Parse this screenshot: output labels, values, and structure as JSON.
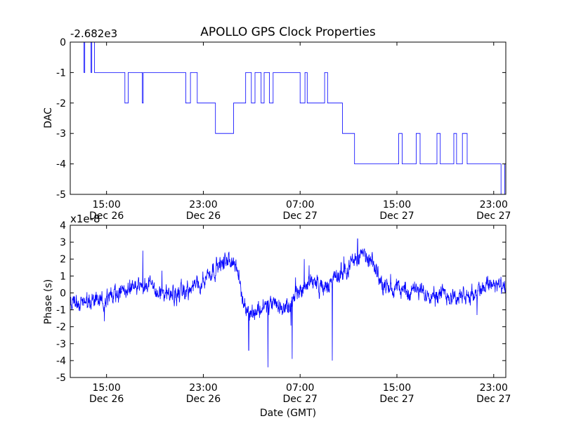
{
  "title": "APOLLO GPS Clock Properties",
  "xlabel": "Date (GMT)",
  "series_color": "#0000ff",
  "chart_data": [
    {
      "type": "line",
      "ylabel": "DAC",
      "offset_label": "-2.682e3",
      "y_ticks": [
        0,
        -1,
        -2,
        -3,
        -4,
        -5
      ],
      "ylim": [
        -5,
        0
      ],
      "xlim": [
        "2010-12-26 12:00",
        "2010-12-28 00:00"
      ],
      "x_ticks": [
        {
          "time": "2010-12-26 15:00",
          "label_time": "15:00",
          "label_date": "Dec 26"
        },
        {
          "time": "2010-12-26 23:00",
          "label_time": "23:00",
          "label_date": "Dec 26"
        },
        {
          "time": "2010-12-27 07:00",
          "label_time": "07:00",
          "label_date": "Dec 27"
        },
        {
          "time": "2010-12-27 15:00",
          "label_time": "15:00",
          "label_date": "Dec 27"
        },
        {
          "time": "2010-12-27 23:00",
          "label_time": "23:00",
          "label_date": "Dec 27"
        }
      ],
      "levels": [
        {
          "from": "2010-12-26 12:00",
          "to": "2010-12-26 13:12",
          "level": 0,
          "toggle": -1
        },
        {
          "from": "2010-12-26 13:12",
          "to": "2010-12-26 14:00",
          "level": 0,
          "toggle": -1
        },
        {
          "from": "2010-12-26 14:00",
          "to": "2010-12-26 15:48",
          "level": -1
        },
        {
          "from": "2010-12-26 15:48",
          "to": "2010-12-26 18:30",
          "level": -1,
          "toggle": -2
        },
        {
          "from": "2010-12-26 18:30",
          "to": "2010-12-26 21:00",
          "level": -1
        },
        {
          "from": "2010-12-26 21:00",
          "to": "2010-12-26 22:30",
          "level": -1,
          "toggle": -2
        },
        {
          "from": "2010-12-26 22:30",
          "to": "2010-12-27 00:00",
          "level": -2
        },
        {
          "from": "2010-12-27 00:00",
          "to": "2010-12-27 01:30",
          "level": -3
        },
        {
          "from": "2010-12-27 01:30",
          "to": "2010-12-27 02:30",
          "level": -2
        },
        {
          "from": "2010-12-27 02:30",
          "to": "2010-12-27 05:30",
          "level": -1,
          "toggle": -2
        },
        {
          "from": "2010-12-27 05:30",
          "to": "2010-12-27 07:00",
          "level": -1
        },
        {
          "from": "2010-12-27 07:00",
          "to": "2010-12-27 09:30",
          "level": -2,
          "toggle": -1
        },
        {
          "from": "2010-12-27 09:30",
          "to": "2010-12-27 10:30",
          "level": -2
        },
        {
          "from": "2010-12-27 10:30",
          "to": "2010-12-27 11:30",
          "level": -3
        },
        {
          "from": "2010-12-27 11:30",
          "to": "2010-12-27 14:00",
          "level": -4
        },
        {
          "from": "2010-12-27 14:00",
          "to": "2010-12-27 21:30",
          "level": -4,
          "toggle": -3
        },
        {
          "from": "2010-12-27 21:30",
          "to": "2010-12-27 22:30",
          "level": -4
        },
        {
          "from": "2010-12-27 22:30",
          "to": "2010-12-28 00:00",
          "level": -4,
          "toggle": -5
        }
      ]
    },
    {
      "type": "line",
      "ylabel": "Phase (s)",
      "offset_label": "x1e-8",
      "y_ticks": [
        4,
        3,
        2,
        1,
        0,
        -1,
        -2,
        -3,
        -4,
        -5
      ],
      "ylim": [
        -5,
        4
      ],
      "xlim": [
        "2010-12-26 12:00",
        "2010-12-28 00:00"
      ],
      "x_ticks": [
        {
          "time": "2010-12-26 15:00",
          "label_time": "15:00",
          "label_date": "Dec 26"
        },
        {
          "time": "2010-12-26 23:00",
          "label_time": "23:00",
          "label_date": "Dec 26"
        },
        {
          "time": "2010-12-27 07:00",
          "label_time": "07:00",
          "label_date": "Dec 27"
        },
        {
          "time": "2010-12-27 15:00",
          "label_time": "15:00",
          "label_date": "Dec 27"
        },
        {
          "time": "2010-12-27 23:00",
          "label_time": "23:00",
          "label_date": "Dec 27"
        }
      ],
      "trend": [
        {
          "time": "2010-12-26 12:00",
          "y": -0.5
        },
        {
          "time": "2010-12-26 14:00",
          "y": -0.6
        },
        {
          "time": "2010-12-26 16:00",
          "y": 0.0
        },
        {
          "time": "2010-12-26 18:00",
          "y": 0.6
        },
        {
          "time": "2010-12-26 20:00",
          "y": -0.2
        },
        {
          "time": "2010-12-26 22:00",
          "y": 0.2
        },
        {
          "time": "2010-12-26 23:00",
          "y": 0.8
        },
        {
          "time": "2010-12-27 00:00",
          "y": 1.5
        },
        {
          "time": "2010-12-27 01:00",
          "y": 1.9
        },
        {
          "time": "2010-12-27 01:40",
          "y": 1.7
        },
        {
          "time": "2010-12-27 02:20",
          "y": -0.6
        },
        {
          "time": "2010-12-27 03:00",
          "y": -1.2
        },
        {
          "time": "2010-12-27 04:00",
          "y": -0.8
        },
        {
          "time": "2010-12-27 05:00",
          "y": -0.7
        },
        {
          "time": "2010-12-27 06:00",
          "y": -1.0
        },
        {
          "time": "2010-12-27 07:00",
          "y": 0.2
        },
        {
          "time": "2010-12-27 08:00",
          "y": 0.8
        },
        {
          "time": "2010-12-27 09:00",
          "y": 0.2
        },
        {
          "time": "2010-12-27 10:00",
          "y": 0.9
        },
        {
          "time": "2010-12-27 11:00",
          "y": 1.6
        },
        {
          "time": "2010-12-27 12:00",
          "y": 2.3
        },
        {
          "time": "2010-12-27 13:00",
          "y": 1.7
        },
        {
          "time": "2010-12-27 14:00",
          "y": 0.3
        },
        {
          "time": "2010-12-27 15:00",
          "y": 0.3
        },
        {
          "time": "2010-12-27 16:00",
          "y": 0.1
        },
        {
          "time": "2010-12-27 18:00",
          "y": 0.0
        },
        {
          "time": "2010-12-27 20:00",
          "y": -0.2
        },
        {
          "time": "2010-12-27 21:00",
          "y": -0.3
        },
        {
          "time": "2010-12-27 22:00",
          "y": 0.4
        },
        {
          "time": "2010-12-27 23:00",
          "y": 0.6
        },
        {
          "time": "2010-12-28 00:00",
          "y": 0.1
        }
      ],
      "spikes": [
        {
          "time": "2010-12-26 18:00",
          "y": 2.5
        },
        {
          "time": "2010-12-27 02:45",
          "y": -3.4
        },
        {
          "time": "2010-12-27 04:20",
          "y": -4.4
        },
        {
          "time": "2010-12-27 06:20",
          "y": -3.9
        },
        {
          "time": "2010-12-27 07:20",
          "y": 2.0
        },
        {
          "time": "2010-12-27 09:40",
          "y": -4.0
        },
        {
          "time": "2010-12-27 11:45",
          "y": 3.2
        }
      ]
    }
  ]
}
